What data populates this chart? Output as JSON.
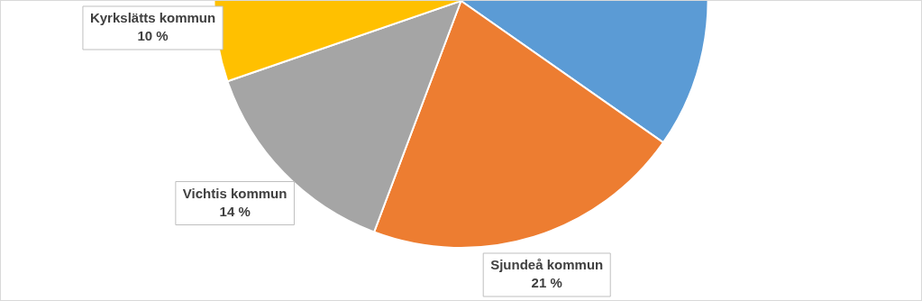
{
  "chart_data": {
    "type": "pie",
    "categories": [
      null,
      "Sjundeå kommun",
      "Vichtis kommun",
      "Kyrkslätts kommun"
    ],
    "values": [
      55,
      21,
      14,
      10
    ],
    "colors": [
      "#5b9bd5",
      "#ed7d31",
      "#a5a5a5",
      "#ffc000"
    ],
    "value_labels": [
      null,
      "21 %",
      "14 %",
      "10 %"
    ]
  }
}
